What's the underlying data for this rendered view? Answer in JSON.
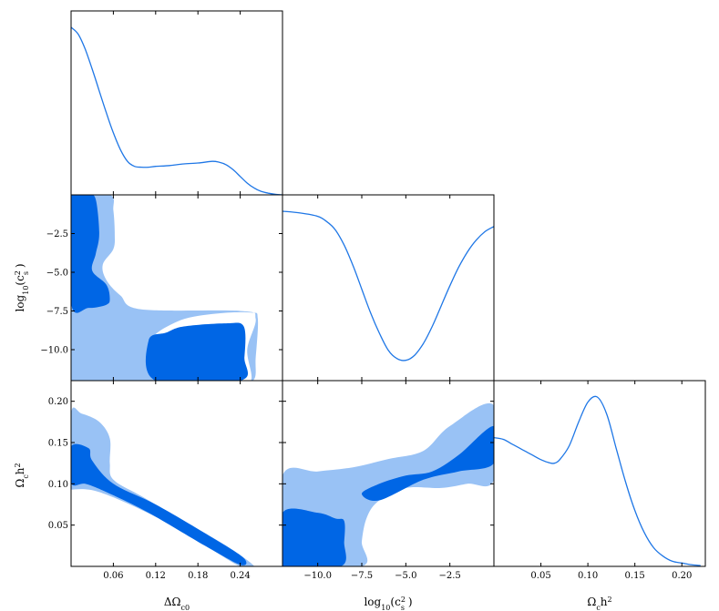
{
  "colors": {
    "line": "#1f77e6",
    "contour_inner": "#0066e5",
    "contour_outer": "#99c2f5",
    "frame": "#000000"
  },
  "chart_data": {
    "type": "triangle",
    "parameters": [
      {
        "key": "dOmega",
        "label": "ΔΩ",
        "label_sub": "c0",
        "range": [
          0.0,
          0.3
        ]
      },
      {
        "key": "logcs2",
        "label": "log",
        "label_sub": "10",
        "label_tail": "(c",
        "label_sup": "2",
        "label_sub2": "s",
        "label_close": " )",
        "range": [
          -12.0,
          0.0
        ]
      },
      {
        "key": "omegach2",
        "label": "Ω",
        "label_sub": "c",
        "label_tail": "h",
        "label_sup": "2",
        "range": [
          0.0,
          0.225
        ]
      }
    ],
    "ticks": {
      "dOmega": {
        "values": [
          0.06,
          0.12,
          0.18,
          0.24
        ],
        "labels": [
          "0.06",
          "0.12",
          "0.18",
          "0.24"
        ]
      },
      "logcs2": {
        "values": [
          -10.0,
          -7.5,
          -5.0,
          -2.5
        ],
        "labels": [
          "−10.0",
          "−7.5",
          "−5.0",
          "−2.5"
        ]
      },
      "omegach2": {
        "values": [
          0.05,
          0.1,
          0.15,
          0.2
        ],
        "labels": [
          "0.05",
          "0.10",
          "0.15",
          "0.20"
        ]
      }
    },
    "marginals": {
      "dOmega": {
        "x": [
          0.0,
          0.01,
          0.02,
          0.03,
          0.04,
          0.05,
          0.06,
          0.07,
          0.08,
          0.09,
          0.1,
          0.11,
          0.12,
          0.14,
          0.16,
          0.18,
          0.2,
          0.21,
          0.22,
          0.23,
          0.24,
          0.25,
          0.26,
          0.27,
          0.28,
          0.29,
          0.3
        ],
        "y": [
          1.0,
          0.96,
          0.87,
          0.75,
          0.62,
          0.49,
          0.37,
          0.27,
          0.2,
          0.17,
          0.165,
          0.165,
          0.17,
          0.175,
          0.185,
          0.19,
          0.2,
          0.195,
          0.18,
          0.15,
          0.11,
          0.07,
          0.04,
          0.02,
          0.01,
          0.003,
          0.0
        ]
      },
      "logcs2": {
        "x": [
          -12.0,
          -11.0,
          -10.0,
          -9.5,
          -9.0,
          -8.5,
          -8.0,
          -7.5,
          -7.0,
          -6.5,
          -6.0,
          -5.5,
          -5.0,
          -4.5,
          -4.0,
          -3.5,
          -3.0,
          -2.5,
          -2.0,
          -1.5,
          -1.0,
          -0.5,
          0.0
        ],
        "y": [
          1.0,
          0.99,
          0.97,
          0.94,
          0.89,
          0.8,
          0.68,
          0.54,
          0.4,
          0.28,
          0.18,
          0.13,
          0.12,
          0.15,
          0.22,
          0.32,
          0.44,
          0.56,
          0.67,
          0.76,
          0.83,
          0.88,
          0.91
        ]
      },
      "omegach2": {
        "x": [
          0.0,
          0.01,
          0.02,
          0.03,
          0.04,
          0.05,
          0.06,
          0.065,
          0.07,
          0.08,
          0.09,
          0.1,
          0.11,
          0.12,
          0.13,
          0.14,
          0.15,
          0.16,
          0.17,
          0.18,
          0.19,
          0.2,
          0.21,
          0.22
        ],
        "y": [
          0.76,
          0.75,
          0.72,
          0.69,
          0.66,
          0.63,
          0.61,
          0.61,
          0.63,
          0.71,
          0.85,
          0.97,
          1.0,
          0.9,
          0.7,
          0.5,
          0.33,
          0.2,
          0.11,
          0.06,
          0.03,
          0.02,
          0.01,
          0.005
        ]
      }
    },
    "contours_2d": {
      "dOmega_vs_logcs2": {
        "outer": [
          [
            0.0,
            0.0
          ],
          [
            0.0,
            -12.0
          ],
          [
            0.12,
            -12.0
          ],
          [
            0.11,
            -9.6
          ],
          [
            0.15,
            -8.2
          ],
          [
            0.2,
            -7.7
          ],
          [
            0.255,
            -7.6
          ],
          [
            0.265,
            -8.0
          ],
          [
            0.262,
            -10.5
          ],
          [
            0.258,
            -12.0
          ],
          [
            0.222,
            -12.0
          ],
          [
            0.222,
            -12.0
          ],
          [
            0.255,
            -12.0
          ],
          [
            0.25,
            -10.0
          ],
          [
            0.262,
            -8.0
          ],
          [
            0.24,
            -7.5
          ],
          [
            0.1,
            -7.4
          ],
          [
            0.07,
            -6.5
          ],
          [
            0.05,
            -5.5
          ],
          [
            0.045,
            -4.5
          ],
          [
            0.06,
            -3.5
          ],
          [
            0.062,
            -2.5
          ],
          [
            0.06,
            -1.0
          ],
          [
            0.055,
            0.0
          ]
        ],
        "inner": [
          [
            [
              0.0,
              0.0
            ],
            [
              0.0,
              -7.0
            ],
            [
              0.025,
              -7.3
            ],
            [
              0.05,
              -7.1
            ],
            [
              0.055,
              -6.7
            ],
            [
              0.05,
              -5.8
            ],
            [
              0.03,
              -4.9
            ],
            [
              0.035,
              -3.8
            ],
            [
              0.04,
              -2.5
            ],
            [
              0.035,
              -0.3
            ],
            [
              0.025,
              0.0
            ]
          ],
          [
            [
              0.12,
              -12.0
            ],
            [
              0.11,
              -9.4
            ],
            [
              0.135,
              -8.9
            ],
            [
              0.16,
              -8.5
            ],
            [
              0.22,
              -8.3
            ],
            [
              0.245,
              -8.5
            ],
            [
              0.246,
              -10.5
            ],
            [
              0.24,
              -12.0
            ]
          ]
        ]
      },
      "dOmega_vs_omegach2": {
        "outer": [
          [
            0.0,
            0.09
          ],
          [
            0.0,
            0.185
          ],
          [
            0.015,
            0.185
          ],
          [
            0.04,
            0.175
          ],
          [
            0.055,
            0.155
          ],
          [
            0.055,
            0.125
          ],
          [
            0.06,
            0.105
          ],
          [
            0.1,
            0.085
          ],
          [
            0.16,
            0.055
          ],
          [
            0.22,
            0.025
          ],
          [
            0.26,
            0.0
          ],
          [
            0.24,
            0.0
          ],
          [
            0.2,
            0.02
          ],
          [
            0.12,
            0.06
          ],
          [
            0.04,
            0.09
          ],
          [
            0.0,
            0.093
          ]
        ],
        "inner": [
          [
            [
              0.0,
              0.101
            ],
            [
              0.0,
              0.145
            ],
            [
              0.025,
              0.143
            ],
            [
              0.03,
              0.128
            ],
            [
              0.06,
              0.1
            ],
            [
              0.12,
              0.075
            ],
            [
              0.2,
              0.035
            ],
            [
              0.245,
              0.01
            ],
            [
              0.24,
              0.002
            ],
            [
              0.19,
              0.025
            ],
            [
              0.11,
              0.065
            ],
            [
              0.05,
              0.09
            ],
            [
              0.02,
              0.1
            ]
          ]
        ]
      },
      "logcs2_vs_omegach2": {
        "outer": [
          [
            -12.0,
            0.0
          ],
          [
            -12.0,
            0.11
          ],
          [
            -10.0,
            0.115
          ],
          [
            -8.0,
            0.12
          ],
          [
            -6.0,
            0.13
          ],
          [
            -4.0,
            0.14
          ],
          [
            -2.5,
            0.17
          ],
          [
            0.0,
            0.195
          ],
          [
            0.0,
            0.105
          ],
          [
            -1.5,
            0.1
          ],
          [
            -3.0,
            0.095
          ],
          [
            -5.0,
            0.095
          ],
          [
            -6.5,
            0.08
          ],
          [
            -7.2,
            0.06
          ],
          [
            -7.5,
            0.03
          ],
          [
            -7.5,
            0.0
          ]
        ],
        "inner": [
          [
            [
              -12.0,
              0.0
            ],
            [
              -12.0,
              0.065
            ],
            [
              -10.0,
              0.065
            ],
            [
              -9.0,
              0.058
            ],
            [
              -8.5,
              0.055
            ],
            [
              -8.5,
              0.03
            ],
            [
              -8.7,
              0.0
            ]
          ],
          [
            [
              -7.5,
              0.088
            ],
            [
              -6.5,
              0.1
            ],
            [
              -5.0,
              0.11
            ],
            [
              -3.5,
              0.115
            ],
            [
              -2.0,
              0.135
            ],
            [
              0.0,
              0.17
            ],
            [
              0.0,
              0.125
            ],
            [
              -2.0,
              0.115
            ],
            [
              -4.0,
              0.105
            ],
            [
              -6.5,
              0.08
            ]
          ]
        ]
      }
    }
  }
}
